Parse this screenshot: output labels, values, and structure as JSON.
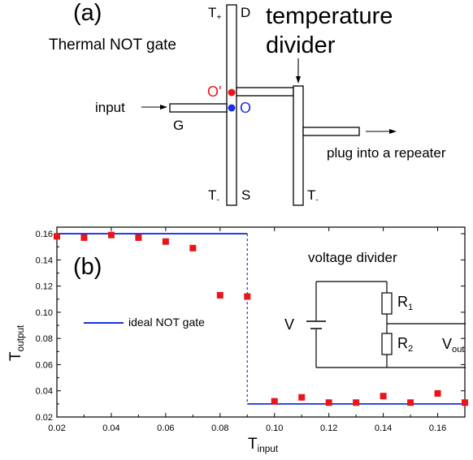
{
  "panel_a": {
    "label": "(a)",
    "gate_title": "Thermal NOT gate",
    "divider_title_line1": "temperature",
    "divider_title_line2": "divider",
    "t_plus": "T",
    "t_plus_sub": "+",
    "t_minus_left": "T",
    "t_minus_left_sub": "-",
    "t_minus_right": "T",
    "t_minus_right_sub": "-",
    "D": "D",
    "S": "S",
    "G": "G",
    "O_prime": "O'",
    "O": "O",
    "input": "input",
    "plug": "plug into a repeater",
    "colors": {
      "O_prime": "#e8161b",
      "O": "#1a2fe0"
    }
  },
  "panel_b": {
    "label": "(b)",
    "legend_label": "ideal NOT gate",
    "circuit": {
      "title": "voltage divider",
      "V": "V",
      "R1": "R",
      "R1_sub": "1",
      "R2": "R",
      "R2_sub": "2",
      "Vout": "V",
      "Vout_sub": "out"
    },
    "colors": {
      "points": "#e8161b",
      "ideal": "#1a2fe0"
    }
  },
  "chart_data": {
    "type": "scatter",
    "xlabel": "T",
    "xlabel_sub": "input",
    "ylabel": "T",
    "ylabel_sub": "output",
    "xlim": [
      0.02,
      0.17
    ],
    "ylim": [
      0.02,
      0.165
    ],
    "x_ticks": [
      "0.02",
      "0.04",
      "0.06",
      "0.08",
      "0.10",
      "0.12",
      "0.14",
      "0.16"
    ],
    "x_tick_values": [
      0.02,
      0.04,
      0.06,
      0.08,
      0.1,
      0.12,
      0.14,
      0.16
    ],
    "y_ticks": [
      "0.02",
      "0.04",
      "0.06",
      "0.08",
      "0.10",
      "0.12",
      "0.14",
      "0.16"
    ],
    "y_tick_values": [
      0.02,
      0.04,
      0.06,
      0.08,
      0.1,
      0.12,
      0.14,
      0.16
    ],
    "series": [
      {
        "kind": "points",
        "x": [
          0.02,
          0.03,
          0.04,
          0.05,
          0.06,
          0.07,
          0.08,
          0.09,
          0.1,
          0.11,
          0.12,
          0.13,
          0.14,
          0.15,
          0.16,
          0.17
        ],
        "y": [
          0.158,
          0.157,
          0.159,
          0.157,
          0.154,
          0.149,
          0.113,
          0.112,
          0.032,
          0.035,
          0.031,
          0.031,
          0.036,
          0.031,
          0.038,
          0.031
        ]
      },
      {
        "name": "ideal NOT gate",
        "kind": "step",
        "x": [
          0.02,
          0.09,
          0.09,
          0.17
        ],
        "y": [
          0.16,
          0.16,
          0.03,
          0.03
        ]
      }
    ]
  }
}
